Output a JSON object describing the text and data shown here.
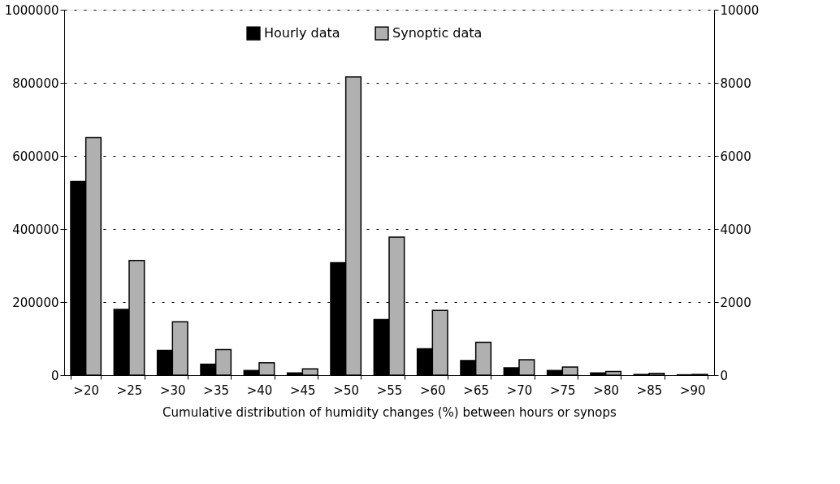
{
  "chart_data": {
    "type": "bar",
    "xlabel": "Cumulative distribution of humidity changes (%) between hours or synops",
    "categories": [
      ">20",
      ">25",
      ">30",
      ">35",
      ">40",
      ">45",
      ">50",
      ">55",
      ">60",
      ">65",
      ">70",
      ">75",
      ">80",
      ">85",
      ">90"
    ],
    "series": [
      {
        "name": "Hourly data",
        "color": "#000000",
        "axis": "y",
        "values": [
          530000,
          180000,
          68000,
          30000,
          13000,
          6000,
          308000,
          152000,
          72000,
          40000,
          20000,
          13000,
          6000,
          2000,
          1000
        ]
      },
      {
        "name": "Synoptic data",
        "color": "#b0b0b0",
        "axis": "y2",
        "values": [
          6500,
          3140,
          1460,
          700,
          340,
          170,
          8160,
          3780,
          1770,
          900,
          420,
          220,
          100,
          50,
          20
        ]
      }
    ],
    "ylim": [
      0,
      1000000
    ],
    "yticks": [
      0,
      200000,
      400000,
      600000,
      800000,
      1000000
    ],
    "y2lim": [
      0,
      10000
    ],
    "y2ticks": [
      0,
      2000,
      4000,
      6000,
      8000,
      10000
    ],
    "grid": "y",
    "legend": "top"
  }
}
